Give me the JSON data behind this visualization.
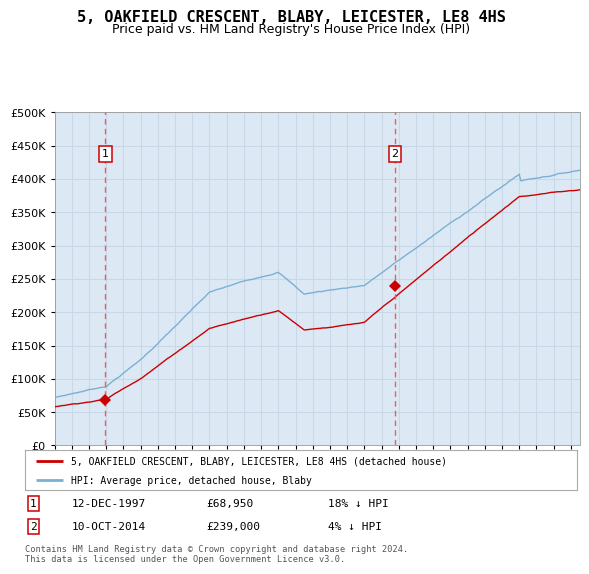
{
  "title": "5, OAKFIELD CRESCENT, BLABY, LEICESTER, LE8 4HS",
  "subtitle": "Price paid vs. HM Land Registry's House Price Index (HPI)",
  "title_fontsize": 11,
  "subtitle_fontsize": 9,
  "background_color": "#ffffff",
  "plot_bg_color": "#dce9f5",
  "grid_color": "#c8d8e8",
  "hpi_color": "#7ab0d4",
  "price_color": "#cc0000",
  "marker_color": "#cc0000",
  "vline_color": "#ff5555",
  "ylim": [
    0,
    500000
  ],
  "yticks": [
    0,
    50000,
    100000,
    150000,
    200000,
    250000,
    300000,
    350000,
    400000,
    450000,
    500000
  ],
  "annotation1_date": "12-DEC-1997",
  "annotation1_price": 68950,
  "annotation1_hpi_pct": "18% ↓ HPI",
  "annotation2_date": "10-OCT-2014",
  "annotation2_price": 239000,
  "annotation2_hpi_pct": "4% ↓ HPI",
  "sale1_x": 1997.95,
  "sale1_y": 68950,
  "sale2_x": 2014.78,
  "sale2_y": 239000,
  "legend_line1": "5, OAKFIELD CRESCENT, BLABY, LEICESTER, LE8 4HS (detached house)",
  "legend_line2": "HPI: Average price, detached house, Blaby",
  "footnote": "Contains HM Land Registry data © Crown copyright and database right 2024.\nThis data is licensed under the Open Government Licence v3.0.",
  "xmin": 1995,
  "xmax": 2025.5
}
